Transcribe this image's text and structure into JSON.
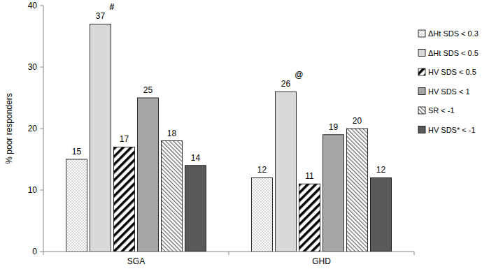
{
  "chart_data": {
    "type": "bar",
    "ylabel": "% poor responders",
    "categories": [
      "SGA",
      "GHD"
    ],
    "series": [
      {
        "name": "ΔHt SDS < 0.3",
        "color": "#ffffff",
        "values": [
          15,
          12
        ]
      },
      {
        "name": "ΔHt SDS < 0.5",
        "color": "#d9d9d9",
        "values": [
          37,
          26
        ]
      },
      {
        "name": "HV SDS < 0.5",
        "color": "#ffffff",
        "values": [
          17,
          11
        ]
      },
      {
        "name": "HV SDS < 1",
        "color": "#a6a6a6",
        "values": [
          25,
          19
        ]
      },
      {
        "name": "SR < -1",
        "color": "#ffffff",
        "values": [
          18,
          20
        ]
      },
      {
        "name": "HV SDS* < -1",
        "color": "#595959",
        "values": [
          14,
          12
        ]
      }
    ],
    "annotations": [
      {
        "text": "#",
        "series": 1,
        "category": 0
      },
      {
        "text": "@",
        "series": 1,
        "category": 1
      }
    ],
    "ylim": [
      0,
      40
    ],
    "yticks": [
      0,
      10,
      20,
      30,
      40
    ],
    "grid": false,
    "legend": "right",
    "data_labels": true
  }
}
